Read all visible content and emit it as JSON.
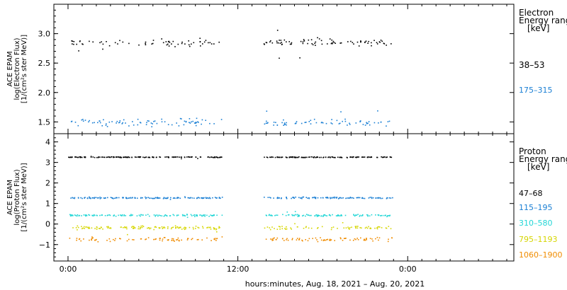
{
  "chart_data": [
    {
      "type": "scatter",
      "panel": "electron",
      "ylabel_lines": [
        "ACE EPAM",
        "log(Electron Flux)",
        "[1/(cm²s ster MeV)]"
      ],
      "ylim": [
        1.3,
        3.5
      ],
      "yticks": [
        1.5,
        2.0,
        2.5,
        3.0
      ],
      "ytick_labels": [
        "1.5",
        "2.0",
        "2.5",
        "3.0"
      ],
      "legend_title_lines": [
        "Electron",
        "Energy range",
        "[keV]"
      ],
      "series": [
        {
          "name": "38–53",
          "color": "#000000",
          "mean": 2.86,
          "spread": 0.09,
          "n": 240
        },
        {
          "name": "175–315",
          "color": "#1a7fd4",
          "mean": 1.5,
          "spread": 0.08,
          "n": 240
        }
      ]
    },
    {
      "type": "scatter",
      "panel": "proton",
      "ylabel_lines": [
        "ACE EPAM",
        "log(Proton Flux)",
        "[1/(cm²s ster MeV)]"
      ],
      "ylim": [
        -1.8,
        4.4
      ],
      "yticks": [
        -1,
        0,
        1,
        2,
        3,
        4
      ],
      "ytick_labels": [
        "−1",
        "0",
        "1",
        "2",
        "3",
        "4"
      ],
      "legend_title_lines": [
        "Proton",
        "Energy range",
        "[keV]"
      ],
      "series": [
        {
          "name": "47–68",
          "color": "#000000",
          "mean": 3.28,
          "spread": 0.03,
          "n": 420
        },
        {
          "name": "115–195",
          "color": "#1a7fd4",
          "mean": 1.3,
          "spread": 0.05,
          "n": 380
        },
        {
          "name": "310–580",
          "color": "#22d6d6",
          "mean": 0.45,
          "spread": 0.07,
          "n": 360
        },
        {
          "name": "795–1193",
          "color": "#d6d600",
          "mean": -0.15,
          "spread": 0.12,
          "n": 300
        },
        {
          "name": "1060–1900",
          "color": "#f08c00",
          "mean": -0.72,
          "spread": 0.14,
          "n": 260
        }
      ]
    }
  ],
  "x_axis": {
    "xlim_hours": [
      -1.0,
      31.5
    ],
    "data_gaps_hours": [
      [
        10.9,
        13.8
      ],
      [
        22.9,
        31.5
      ]
    ],
    "ticks_hours": [
      0,
      12,
      24
    ],
    "tick_labels": [
      "0:00",
      "12:00",
      "0:00"
    ],
    "minor_tick_step_hours": 1,
    "xlabel": "hours:minutes, Aug. 18, 2021 – Aug. 20, 2021"
  }
}
